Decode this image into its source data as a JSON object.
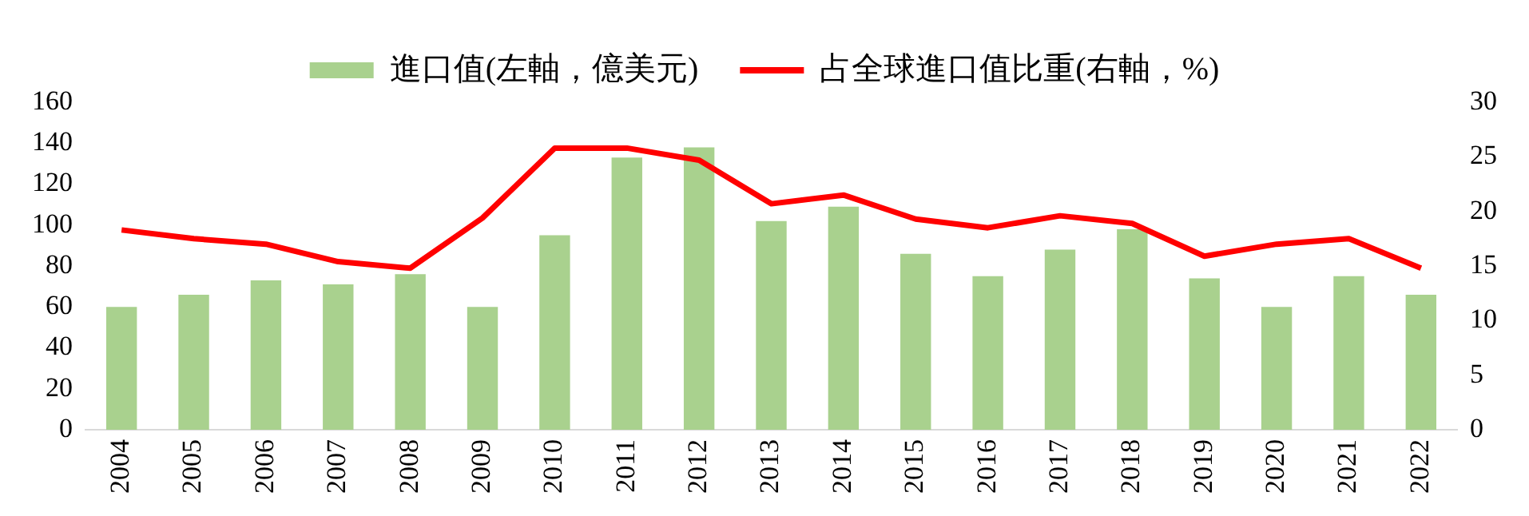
{
  "chart_data": {
    "type": "bar",
    "categories": [
      "2004",
      "2005",
      "2006",
      "2007",
      "2008",
      "2009",
      "2010",
      "2011",
      "2012",
      "2013",
      "2014",
      "2015",
      "2016",
      "2017",
      "2018",
      "2019",
      "2020",
      "2021",
      "2022"
    ],
    "series": [
      {
        "name": "進口值(左軸，億美元)",
        "color": "#a9d18e",
        "values": [
          60,
          66,
          73,
          71,
          76,
          60,
          95,
          133,
          138,
          102,
          109,
          86,
          75,
          88,
          98,
          74,
          60,
          75,
          66
        ]
      },
      {
        "name": "占全球進口值比重(右軸，%)",
        "type": "line",
        "axis": "y2",
        "color": "#ff0000",
        "values": [
          18.3,
          17.5,
          17.0,
          15.4,
          14.8,
          19.4,
          25.8,
          25.8,
          24.7,
          20.7,
          21.5,
          19.3,
          18.5,
          19.6,
          18.9,
          15.9,
          17.0,
          17.5,
          14.8
        ]
      }
    ],
    "ylim": [
      0,
      160
    ],
    "yticks": [
      0,
      20,
      40,
      60,
      80,
      100,
      120,
      140,
      160
    ],
    "y2lim": [
      0,
      30
    ],
    "y2ticks": [
      0,
      5,
      10,
      15,
      20,
      25,
      30
    ],
    "grid": false,
    "legend": "top",
    "marker": "none",
    "line_style": "solid"
  }
}
